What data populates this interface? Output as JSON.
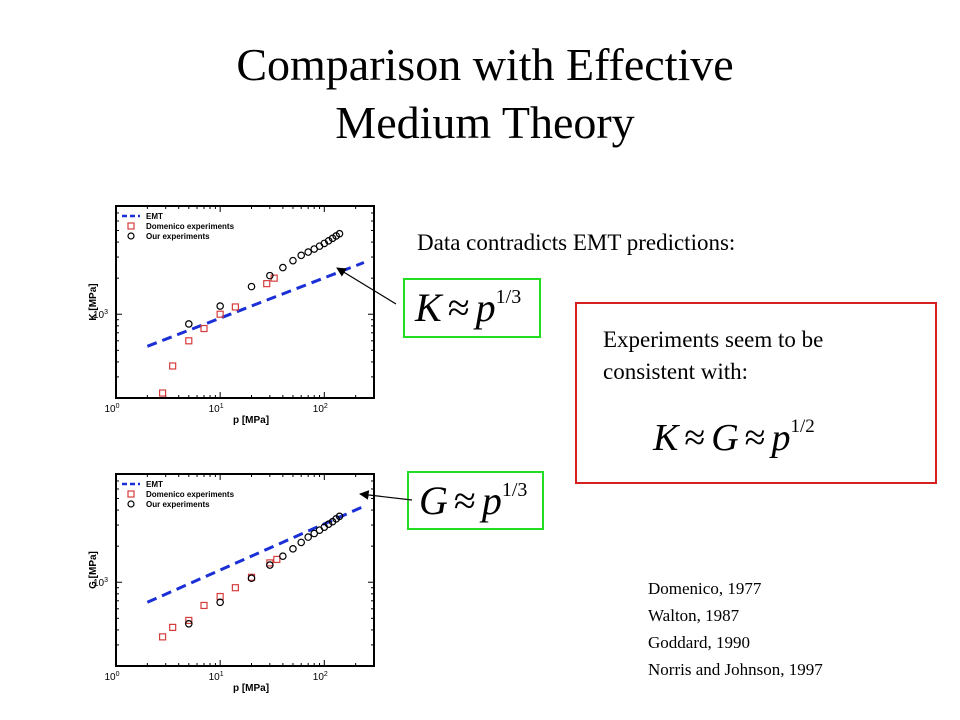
{
  "slide": {
    "title_line1": "Comparison with Effective",
    "title_line2": "Medium Theory",
    "statement": "Data contradicts EMT predictions:",
    "box_k": {
      "lhs": "K",
      "approx": "≈",
      "base": "p",
      "exp": "1/3"
    },
    "box_g": {
      "lhs": "G",
      "approx": "≈",
      "base": "p",
      "exp": "1/3"
    },
    "consistent": {
      "line1": "Experiments seem to be",
      "line2": "consistent  with:",
      "lhs": "K",
      "approx1": "≈",
      "mid": "G",
      "approx2": "≈",
      "base": "p",
      "exp": "1/2"
    },
    "references": [
      "Domenico, 1977",
      "Walton, 1987",
      "Goddard, 1990",
      "Norris and Johnson, 1997"
    ],
    "colors": {
      "emt": "#1a2fd6",
      "domenico": "#d63c3c",
      "ours": "#000000",
      "box_green": "#22dd22",
      "box_red": "#d62020"
    }
  },
  "chart_data": [
    {
      "type": "scatter",
      "title": "",
      "xlabel": "p [MPa]",
      "ylabel": "K [MPa]",
      "xscale": "log",
      "yscale": "log",
      "xlim": [
        1,
        300
      ],
      "ylim": [
        200,
        8000
      ],
      "x_ticks": [
        {
          "value": 1,
          "base": "10",
          "exp": "0"
        },
        {
          "value": 10,
          "base": "10",
          "exp": "1"
        },
        {
          "value": 100,
          "base": "10",
          "exp": "2"
        }
      ],
      "y_ticks": [
        {
          "value": 1000,
          "base": "10",
          "exp": "3"
        }
      ],
      "legend": {
        "placement": "top-left",
        "entries": [
          "EMT",
          "Domenico experiments",
          "Our experiments"
        ]
      },
      "series": [
        {
          "name": "EMT",
          "kind": "dashed-line",
          "x": [
            2,
            240
          ],
          "y": [
            540,
            2700
          ]
        },
        {
          "name": "Domenico experiments",
          "kind": "square",
          "x": [
            2.8,
            3.5,
            5,
            7,
            10,
            14,
            28,
            33
          ],
          "y": [
            220,
            370,
            600,
            760,
            1000,
            1150,
            1800,
            2000
          ]
        },
        {
          "name": "Our experiments",
          "kind": "circle",
          "x": [
            5,
            10,
            20,
            30,
            40,
            50,
            60,
            70,
            80,
            90,
            100,
            110,
            120,
            130,
            140
          ],
          "y": [
            830,
            1170,
            1700,
            2100,
            2450,
            2800,
            3100,
            3300,
            3500,
            3700,
            3900,
            4100,
            4300,
            4500,
            4700
          ]
        }
      ]
    },
    {
      "type": "scatter",
      "title": "",
      "xlabel": "p [MPa]",
      "ylabel": "G [MPa]",
      "xscale": "log",
      "yscale": "log",
      "xlim": [
        1,
        300
      ],
      "ylim": [
        200,
        8000
      ],
      "x_ticks": [
        {
          "value": 1,
          "base": "10",
          "exp": "0"
        },
        {
          "value": 10,
          "base": "10",
          "exp": "1"
        },
        {
          "value": 100,
          "base": "10",
          "exp": "2"
        }
      ],
      "y_ticks": [
        {
          "value": 1000,
          "base": "10",
          "exp": "3"
        }
      ],
      "legend": {
        "placement": "top-left",
        "entries": [
          "EMT",
          "Domenico experiments",
          "Our experiments"
        ]
      },
      "series": [
        {
          "name": "EMT",
          "kind": "dashed-line",
          "x": [
            2,
            240
          ],
          "y": [
            680,
            4300
          ]
        },
        {
          "name": "Domenico experiments",
          "kind": "square",
          "x": [
            2.8,
            3.5,
            5,
            7,
            10,
            14,
            20,
            30,
            35
          ],
          "y": [
            350,
            420,
            480,
            640,
            760,
            900,
            1100,
            1450,
            1550
          ]
        },
        {
          "name": "Our experiments",
          "kind": "circle",
          "x": [
            5,
            10,
            20,
            30,
            40,
            50,
            60,
            70,
            80,
            90,
            100,
            110,
            120,
            130,
            140
          ],
          "y": [
            450,
            680,
            1080,
            1390,
            1650,
            1900,
            2150,
            2380,
            2550,
            2720,
            2880,
            3050,
            3200,
            3380,
            3550
          ]
        }
      ]
    }
  ]
}
